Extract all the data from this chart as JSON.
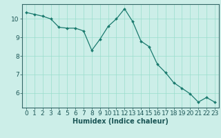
{
  "x": [
    0,
    1,
    2,
    3,
    4,
    5,
    6,
    7,
    8,
    9,
    10,
    11,
    12,
    13,
    14,
    15,
    16,
    17,
    18,
    19,
    20,
    21,
    22,
    23
  ],
  "y": [
    10.35,
    10.25,
    10.15,
    10.0,
    9.55,
    9.5,
    9.5,
    9.35,
    8.3,
    8.9,
    9.6,
    10.0,
    10.55,
    9.85,
    8.8,
    8.5,
    7.55,
    7.1,
    6.55,
    6.25,
    5.95,
    5.5,
    5.75,
    5.5
  ],
  "xlabel": "Humidex (Indice chaleur)",
  "bg_color": "#cceee8",
  "line_color": "#1a7a6e",
  "marker_color": "#1a7a6e",
  "grid_color": "#99ddcc",
  "axis_color": "#336666",
  "tick_color": "#1a5555",
  "ylim_min": 5.2,
  "ylim_max": 10.8,
  "xlim_min": -0.5,
  "xlim_max": 23.5,
  "yticks": [
    6,
    7,
    8,
    9,
    10
  ],
  "xticks": [
    0,
    1,
    2,
    3,
    4,
    5,
    6,
    7,
    8,
    9,
    10,
    11,
    12,
    13,
    14,
    15,
    16,
    17,
    18,
    19,
    20,
    21,
    22,
    23
  ],
  "xlabel_fontsize": 7.0,
  "tick_fontsize": 6.5
}
